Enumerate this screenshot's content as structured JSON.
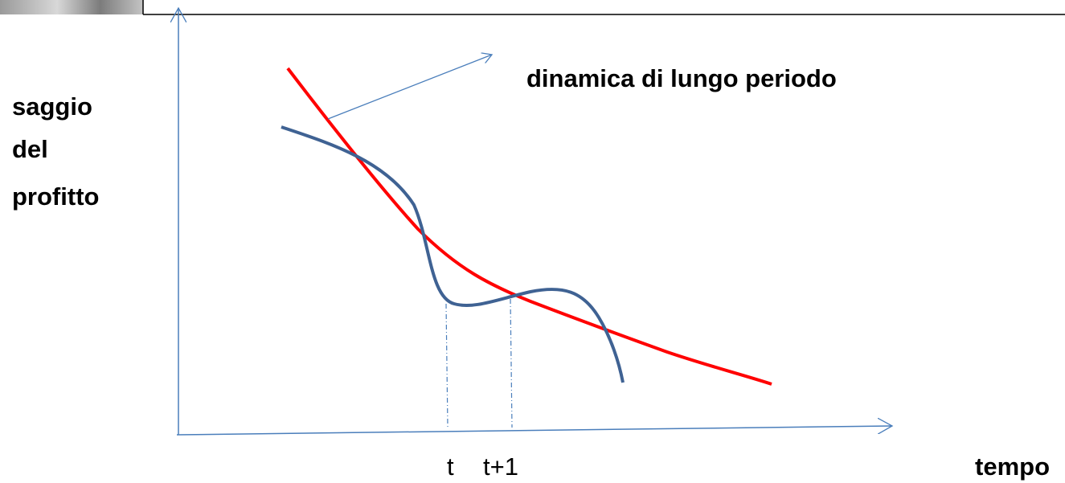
{
  "y_axis_label": [
    "saggio",
    "del",
    "profitto"
  ],
  "annotation": "dinamica di lungo periodo",
  "x_marks": [
    "t",
    "t+1"
  ],
  "x_axis_label": "tempo"
}
